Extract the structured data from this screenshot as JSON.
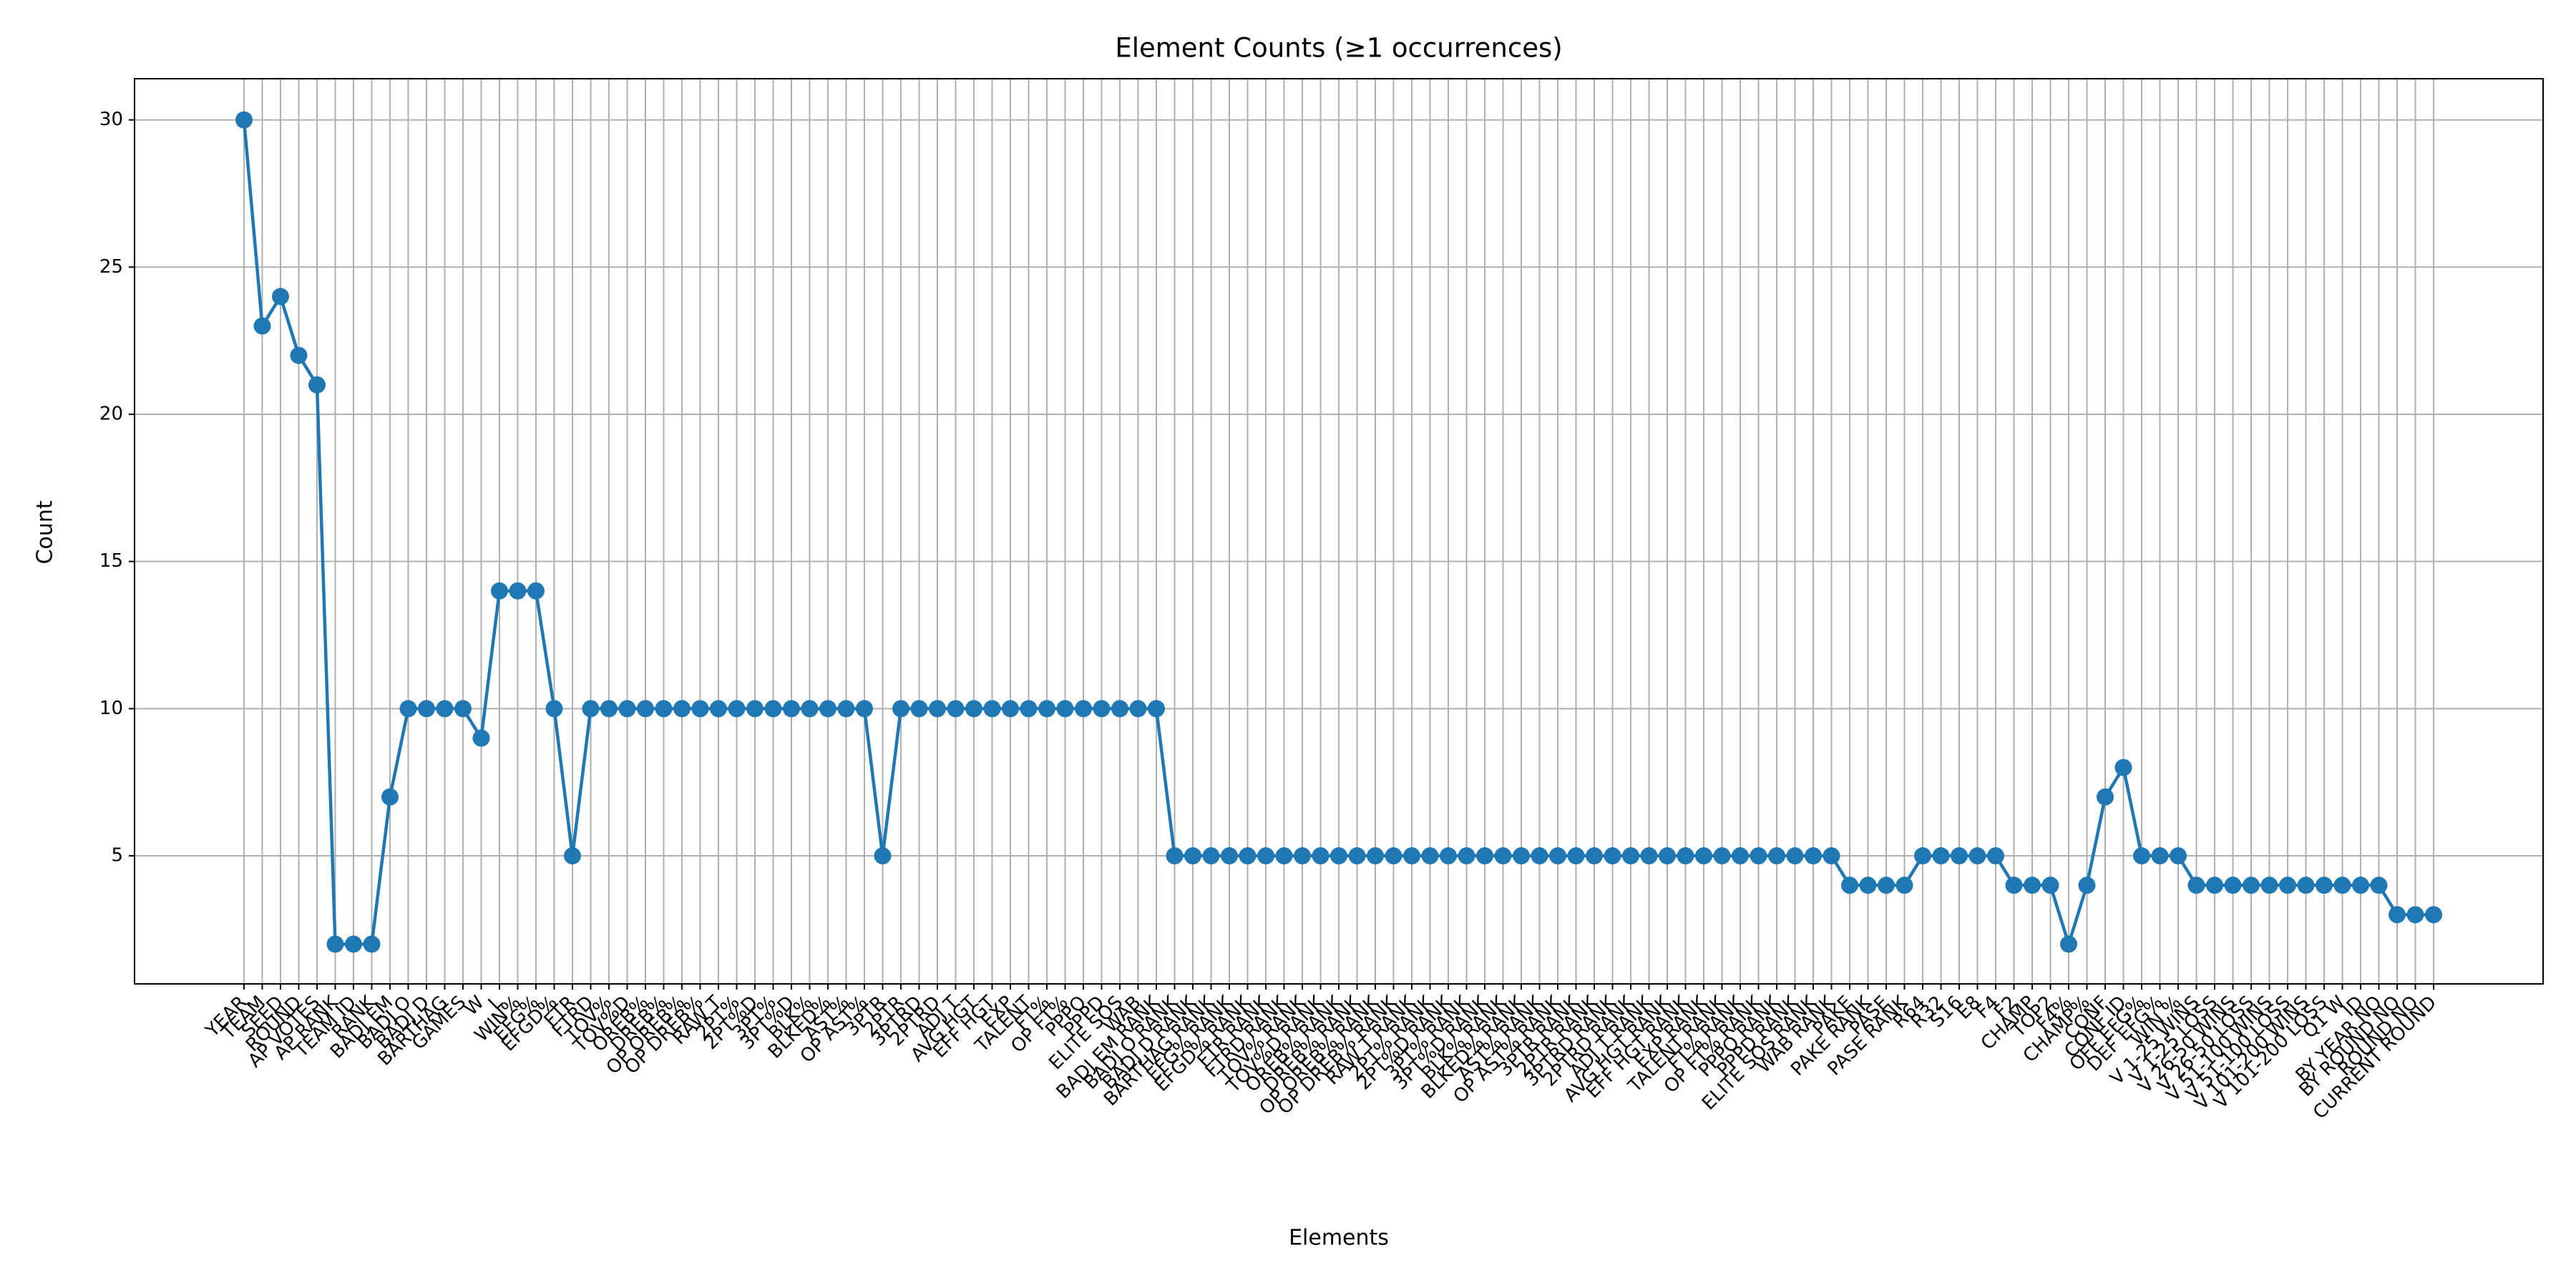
{
  "chart_data": {
    "type": "line",
    "title": "Element Counts (≥1 occurrences)",
    "xlabel": "Elements",
    "ylabel": "Count",
    "color": "#1f77b4",
    "grid": true,
    "ylim": [
      0.65,
      31.4
    ],
    "yticks": [
      5,
      10,
      15,
      20,
      25,
      30
    ],
    "categories": [
      "YEAR",
      "TEAM",
      "SEED",
      "ROUND",
      "AP VOTES",
      "AP RANK",
      "TEAM ID",
      "RANK",
      "BADJ EM",
      "BADJ O",
      "BADJ D",
      "BARTHAG",
      "GAMES",
      "W",
      "L",
      "WIN%",
      "EFG%",
      "EFGD%",
      "FTR",
      "FTRD",
      "TOV%",
      "TOV%D",
      "OREB%",
      "DREB%",
      "OP OREB%",
      "OP DREB%",
      "RAW T",
      "2PT%",
      "2PT%D",
      "3PT%",
      "3PT%D",
      "BLK%",
      "BLKED%",
      "AST%",
      "OP AST%",
      "3PTR",
      "2PTR",
      "3PTRD",
      "2PTRD",
      "ADJ T",
      "AVG HGT",
      "EFF HGT",
      "EXP",
      "TALENT",
      "FT%",
      "OP FT%",
      "PPPO",
      "PPPD",
      "ELITE SOS",
      "WAB",
      "BADJ EM RANK",
      "BADJ O RANK",
      "BADJ D RANK",
      "BARTHAG RANK",
      "EFG% RANK",
      "EFGD% RANK",
      "FTR RANK",
      "FTRD RANK",
      "TOV% RANK",
      "TOV%D RANK",
      "OREB% RANK",
      "DREB% RANK",
      "OP OREB% RANK",
      "OP DREB% RANK",
      "RAW T RANK",
      "2PT% RANK",
      "2PT%D RANK",
      "3PT% RANK",
      "3PT%D RANK",
      "BLK% RANK",
      "BLKED% RANK",
      "AST% RANK",
      "OP AST% RANK",
      "3PTR RANK",
      "2PTR RANK",
      "3PTRD RANK",
      "2PTRD RANK",
      "ADJ T RANK",
      "AVG HGT RANK",
      "EFF HGT RANK",
      "EXP RANK",
      "TALENT RANK",
      "FT% RANK",
      "OP FT% RANK",
      "PPPO RANK",
      "PPPD RANK",
      "ELITE SOS RANK",
      "WAB RANK",
      "PAKE",
      "PAKE RANK",
      "PASE",
      "PASE RANK",
      "R64",
      "R32",
      "S16",
      "E8",
      "F4",
      "F2",
      "CHAMP",
      "TOP2",
      "F4%",
      "CHAMP%",
      "CONF",
      "CONF ID",
      "OFF EFG%",
      "DEF EFG%",
      "WIN %",
      "V 1-25 WINS",
      "V 1-25 LOSS",
      "V 26-50 WINS",
      "V 26-50 LOSS",
      "V 51-100 WINS",
      "V 51-100 LOSS",
      "V 101-200 WINS",
      "V 101-200 LOSS",
      "Q1 W",
      "ID",
      "BY YEAR NO",
      "BY ROUND NO",
      "ROUND NO",
      "CURRENT ROUND"
    ],
    "values": [
      30,
      23,
      24,
      22,
      21,
      2,
      2,
      2,
      7,
      10,
      10,
      10,
      10,
      9,
      14,
      14,
      14,
      10,
      5,
      10,
      10,
      10,
      10,
      10,
      10,
      10,
      10,
      10,
      10,
      10,
      10,
      10,
      10,
      10,
      10,
      5,
      10,
      10,
      10,
      10,
      10,
      10,
      10,
      10,
      10,
      10,
      10,
      10,
      10,
      10,
      10,
      5,
      5,
      5,
      5,
      5,
      5,
      5,
      5,
      5,
      5,
      5,
      5,
      5,
      5,
      5,
      5,
      5,
      5,
      5,
      5,
      5,
      5,
      5,
      5,
      5,
      5,
      5,
      5,
      5,
      5,
      5,
      5,
      5,
      5,
      5,
      5,
      5,
      4,
      4,
      4,
      4,
      5,
      5,
      5,
      5,
      5,
      4,
      4,
      4,
      2,
      4,
      7,
      8,
      5,
      5,
      5,
      4,
      4,
      4,
      4,
      4,
      4,
      4,
      4,
      4,
      4,
      4,
      3,
      3,
      3
    ]
  }
}
